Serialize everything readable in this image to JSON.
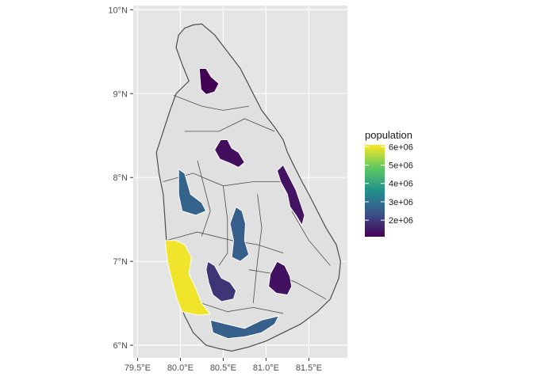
{
  "chart_data": {
    "type": "choropleth-map",
    "title": "",
    "xlim": [
      79.45,
      81.95
    ],
    "ylim": [
      5.85,
      10.05
    ],
    "x_ticks": [
      {
        "value": 79.5,
        "label": "79.5°E"
      },
      {
        "value": 80.0,
        "label": "80.0°E"
      },
      {
        "value": 80.5,
        "label": "80.5°E"
      },
      {
        "value": 81.0,
        "label": "81.0°E"
      },
      {
        "value": 81.5,
        "label": "81.5°E"
      }
    ],
    "y_ticks": [
      {
        "value": 6,
        "label": "6°N"
      },
      {
        "value": 7,
        "label": "7°N"
      },
      {
        "value": 8,
        "label": "8°N"
      },
      {
        "value": 9,
        "label": "9°N"
      },
      {
        "value": 10,
        "label": "10°N"
      }
    ],
    "grid": true,
    "legend": {
      "title": "population",
      "position": "right",
      "range": [
        1100000,
        6100000
      ],
      "ticks": [
        {
          "value": 2000000,
          "label": "2e+06"
        },
        {
          "value": 3000000,
          "label": "3e+06"
        },
        {
          "value": 4000000,
          "label": "4e+06"
        },
        {
          "value": 5000000,
          "label": "5e+06"
        },
        {
          "value": 6000000,
          "label": "6e+06"
        }
      ],
      "colormap": [
        "#440154",
        "#3b528b",
        "#21918c",
        "#5ec962",
        "#fde725"
      ]
    },
    "colors": {
      "panel_background": "#e5e5e5",
      "grid": "#ffffff",
      "outline": "#4d4d4d",
      "land_fill": "#e0e0e0",
      "region_border": "#ffffff"
    },
    "regions": [
      {
        "population": 1150000,
        "polygon": [
          [
            80.22,
            9.3
          ],
          [
            80.3,
            9.3
          ],
          [
            80.36,
            9.2
          ],
          [
            80.45,
            9.12
          ],
          [
            80.4,
            9.02
          ],
          [
            80.3,
            8.99
          ],
          [
            80.24,
            9.05
          ],
          [
            80.23,
            9.18
          ]
        ]
      },
      {
        "population": 1300000,
        "polygon": [
          [
            80.47,
            8.45
          ],
          [
            80.55,
            8.45
          ],
          [
            80.6,
            8.35
          ],
          [
            80.68,
            8.3
          ],
          [
            80.75,
            8.18
          ],
          [
            80.68,
            8.12
          ],
          [
            80.58,
            8.17
          ],
          [
            80.46,
            8.22
          ],
          [
            80.4,
            8.33
          ]
        ]
      },
      {
        "population": 1400000,
        "polygon": [
          [
            81.2,
            8.15
          ],
          [
            81.25,
            8.05
          ],
          [
            81.3,
            7.95
          ],
          [
            81.35,
            7.85
          ],
          [
            81.4,
            7.7
          ],
          [
            81.45,
            7.55
          ],
          [
            81.42,
            7.43
          ],
          [
            81.35,
            7.55
          ],
          [
            81.28,
            7.65
          ],
          [
            81.25,
            7.8
          ],
          [
            81.17,
            7.95
          ],
          [
            81.13,
            8.08
          ]
        ]
      },
      {
        "population": 1350000,
        "polygon": [
          [
            81.13,
            7.0
          ],
          [
            81.22,
            6.95
          ],
          [
            81.28,
            6.82
          ],
          [
            81.3,
            6.7
          ],
          [
            81.25,
            6.6
          ],
          [
            81.12,
            6.62
          ],
          [
            81.03,
            6.7
          ],
          [
            81.05,
            6.85
          ]
        ]
      },
      {
        "population": 1900000,
        "polygon": [
          [
            80.32,
            7.0
          ],
          [
            80.4,
            6.95
          ],
          [
            80.48,
            6.8
          ],
          [
            80.58,
            6.75
          ],
          [
            80.65,
            6.65
          ],
          [
            80.62,
            6.55
          ],
          [
            80.48,
            6.52
          ],
          [
            80.38,
            6.6
          ],
          [
            80.33,
            6.75
          ],
          [
            80.3,
            6.9
          ]
        ]
      },
      {
        "population": 2700000,
        "polygon": [
          [
            79.98,
            8.1
          ],
          [
            80.05,
            8.05
          ],
          [
            80.12,
            7.8
          ],
          [
            80.25,
            7.7
          ],
          [
            80.3,
            7.6
          ],
          [
            80.18,
            7.55
          ],
          [
            80.02,
            7.6
          ],
          [
            79.98,
            7.8
          ]
        ]
      },
      {
        "population": 2600000,
        "polygon": [
          [
            80.35,
            6.3
          ],
          [
            80.55,
            6.25
          ],
          [
            80.75,
            6.2
          ],
          [
            80.95,
            6.3
          ],
          [
            81.15,
            6.35
          ],
          [
            81.1,
            6.25
          ],
          [
            80.95,
            6.15
          ],
          [
            80.75,
            6.1
          ],
          [
            80.55,
            6.08
          ],
          [
            80.38,
            6.15
          ]
        ]
      },
      {
        "population": 2600000,
        "polygon": [
          [
            80.65,
            7.65
          ],
          [
            80.72,
            7.6
          ],
          [
            80.76,
            7.45
          ],
          [
            80.75,
            7.25
          ],
          [
            80.8,
            7.08
          ],
          [
            80.7,
            7.0
          ],
          [
            80.6,
            7.05
          ],
          [
            80.62,
            7.25
          ],
          [
            80.58,
            7.45
          ]
        ]
      },
      {
        "population": 6000000,
        "polygon": [
          [
            79.82,
            7.25
          ],
          [
            79.95,
            7.25
          ],
          [
            80.05,
            7.2
          ],
          [
            80.13,
            7.05
          ],
          [
            80.1,
            6.85
          ],
          [
            80.18,
            6.68
          ],
          [
            80.25,
            6.5
          ],
          [
            80.35,
            6.37
          ],
          [
            80.2,
            6.36
          ],
          [
            80.02,
            6.4
          ],
          [
            79.96,
            6.55
          ],
          [
            79.9,
            6.78
          ],
          [
            79.85,
            7.0
          ]
        ]
      }
    ]
  }
}
